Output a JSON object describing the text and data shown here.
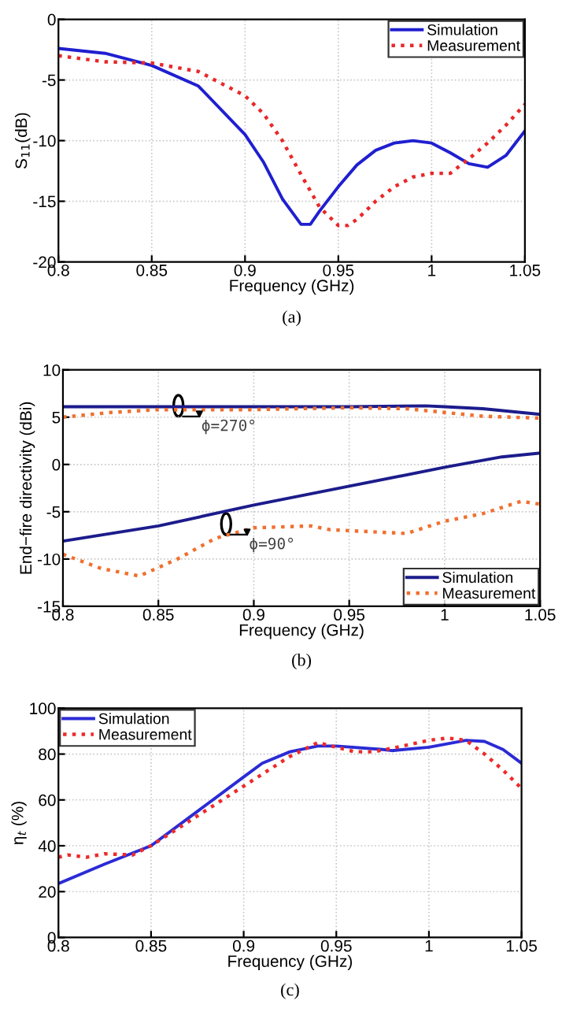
{
  "chart_data": [
    {
      "type": "line",
      "xlabel": "Frequency (GHz)",
      "ylabel": "S$_{11}$(dB)",
      "xlim": [
        0.8,
        1.05
      ],
      "ylim": [
        -20,
        0
      ],
      "xticks": [
        0.8,
        0.85,
        0.9,
        0.95,
        1,
        1.05
      ],
      "yticks": [
        -20,
        -15,
        -10,
        -5,
        0
      ],
      "grid": true,
      "legend": "top right",
      "annotations": [
        "(a)"
      ],
      "series": [
        {
          "name": "Simulation",
          "color": "#1f1fd0",
          "line_style": "solid",
          "x": [
            0.8,
            0.825,
            0.85,
            0.875,
            0.9,
            0.91,
            0.92,
            0.93,
            0.935,
            0.94,
            0.95,
            0.96,
            0.97,
            0.98,
            0.99,
            1.0,
            1.01,
            1.02,
            1.03,
            1.04,
            1.05
          ],
          "values": [
            -2.4,
            -2.8,
            -3.8,
            -5.5,
            -9.5,
            -11.8,
            -14.8,
            -16.9,
            -16.9,
            -15.8,
            -13.8,
            -12,
            -10.8,
            -10.2,
            -10,
            -10.2,
            -11,
            -11.9,
            -12.2,
            -11.2,
            -9.2
          ]
        },
        {
          "name": "Measurement",
          "color": "#e8282a",
          "line_style": "dotted",
          "x": [
            0.8,
            0.825,
            0.85,
            0.875,
            0.9,
            0.91,
            0.92,
            0.93,
            0.94,
            0.95,
            0.955,
            0.96,
            0.97,
            0.98,
            0.99,
            1.0,
            1.01,
            1.02,
            1.03,
            1.04,
            1.05
          ],
          "values": [
            -3,
            -3.5,
            -3.6,
            -4.3,
            -6.3,
            -7.8,
            -10,
            -12.8,
            -15.5,
            -17,
            -17,
            -16.5,
            -15,
            -13.8,
            -13,
            -12.7,
            -12.7,
            -11.5,
            -10.2,
            -8.7,
            -7
          ]
        }
      ]
    },
    {
      "type": "line",
      "xlabel": "Frequency (GHz)",
      "ylabel": "End−fire directivity (dBi)",
      "xlim": [
        0.8,
        1.05
      ],
      "ylim": [
        -15,
        10
      ],
      "xticks": [
        0.8,
        0.85,
        0.9,
        0.95,
        1,
        1.05
      ],
      "yticks": [
        -15,
        -10,
        -5,
        0,
        5,
        10
      ],
      "grid": true,
      "legend": "bottom right",
      "annotations": [
        "(b)",
        "ϕ=270°",
        "ϕ=90°"
      ],
      "series": [
        {
          "name": "Simulation",
          "color": "#1c1c8c",
          "line_style": "solid",
          "x": [
            0.8,
            0.85,
            0.9,
            0.95,
            0.99,
            1.0,
            1.02,
            1.05
          ],
          "values": [
            6.1,
            6.1,
            6.1,
            6.1,
            6.2,
            6.1,
            5.9,
            5.3
          ]
        },
        {
          "name": "Measurement",
          "color": "#f07030",
          "line_style": "dotted",
          "x": [
            0.8,
            0.825,
            0.85,
            0.9,
            0.95,
            0.98,
            1.0,
            1.02,
            1.05
          ],
          "values": [
            5,
            5.5,
            5.8,
            5.8,
            6.0,
            5.9,
            5.5,
            5.1,
            4.9
          ]
        },
        {
          "color": "#1c1c8c",
          "line_style": "solid",
          "x": [
            0.8,
            0.85,
            0.9,
            0.95,
            1.0,
            1.03,
            1.05
          ],
          "values": [
            -8.1,
            -6.5,
            -4.3,
            -2.3,
            -0.3,
            0.8,
            1.2
          ]
        },
        {
          "color": "#f07030",
          "line_style": "dotted",
          "x": [
            0.8,
            0.82,
            0.84,
            0.86,
            0.88,
            0.9,
            0.93,
            0.94,
            0.98,
            1.0,
            1.02,
            1.04,
            1.05
          ],
          "values": [
            -9.5,
            -11,
            -11.8,
            -10,
            -7.8,
            -6.7,
            -6.5,
            -6.9,
            -7.3,
            -6,
            -5.2,
            -3.9,
            -4.2
          ]
        }
      ]
    },
    {
      "type": "line",
      "xlabel": "Frequency (GHz)",
      "ylabel": "η$_{t}$ (%)",
      "xlim": [
        0.8,
        1.05
      ],
      "ylim": [
        0,
        100
      ],
      "xticks": [
        0.8,
        0.85,
        0.9,
        0.95,
        1,
        1.05
      ],
      "yticks": [
        0,
        20,
        40,
        60,
        80,
        100
      ],
      "grid": true,
      "legend": "top left",
      "annotations": [
        "(c)"
      ],
      "series": [
        {
          "name": "Simulation",
          "color": "#2b2bd6",
          "line_style": "solid",
          "x": [
            0.8,
            0.825,
            0.85,
            0.875,
            0.9,
            0.91,
            0.925,
            0.94,
            0.95,
            0.975,
            0.98,
            1.0,
            1.02,
            1.03,
            1.04,
            1.05
          ],
          "values": [
            23.5,
            32,
            40,
            55,
            70,
            76,
            81,
            83.5,
            83.5,
            82,
            81.5,
            83,
            86,
            85.5,
            82,
            76
          ]
        },
        {
          "name": "Measurement",
          "color": "#ee2a2a",
          "line_style": "dotted",
          "x": [
            0.8,
            0.805,
            0.815,
            0.825,
            0.84,
            0.85,
            0.875,
            0.9,
            0.925,
            0.94,
            0.95,
            0.96,
            0.97,
            0.98,
            1.0,
            1.01,
            1.02,
            1.03,
            1.04,
            1.05
          ],
          "values": [
            35,
            36,
            35,
            36.5,
            36,
            40,
            53,
            66,
            79,
            85,
            83,
            81,
            81,
            82.5,
            86,
            87,
            86,
            80,
            73,
            65
          ]
        }
      ]
    }
  ]
}
